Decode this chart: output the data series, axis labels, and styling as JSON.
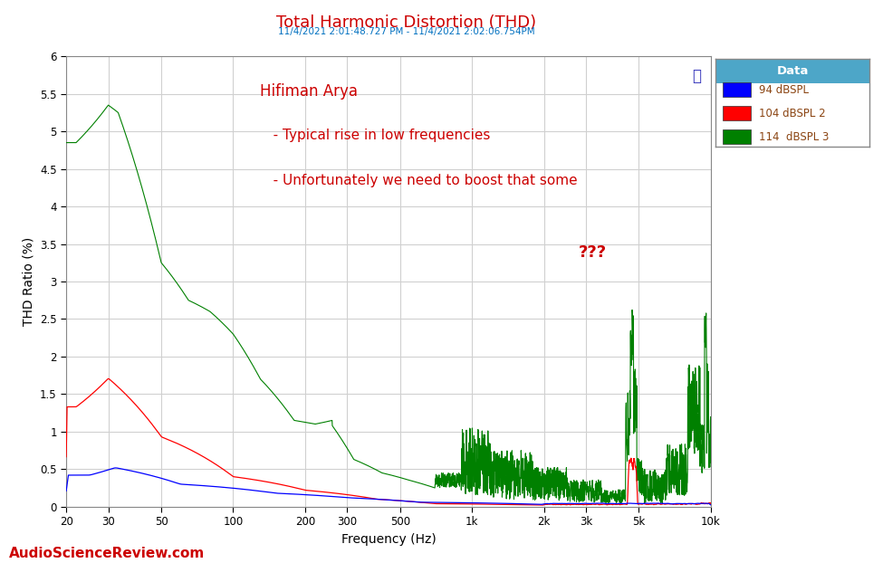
{
  "title": "Total Harmonic Distortion (THD)",
  "subtitle": "11/4/2021 2:01:48.727 PM - 11/4/2021 2:02:06.754PM",
  "xlabel": "Frequency (Hz)",
  "ylabel": "THD Ratio (%)",
  "xlim": [
    20,
    10000
  ],
  "ylim": [
    0,
    6.0
  ],
  "yticks": [
    0,
    0.5,
    1.0,
    1.5,
    2.0,
    2.5,
    3.0,
    3.5,
    4.0,
    4.5,
    5.0,
    5.5,
    6.0
  ],
  "xtick_positions": [
    20,
    30,
    50,
    100,
    200,
    300,
    500,
    1000,
    2000,
    3000,
    5000,
    10000
  ],
  "xtick_labels": [
    "20",
    "30",
    "50",
    "100",
    "200",
    "300",
    "500",
    "1k",
    "2k",
    "3k",
    "5k",
    "10k"
  ],
  "legend_title": "Data",
  "legend_entries": [
    "94 dBSPL",
    "104 dBSPL 2",
    "114  dBSPL 3"
  ],
  "line_colors": [
    "#0000ff",
    "#ff0000",
    "#008000"
  ],
  "bg_color": "#ffffff",
  "plot_bg": "#ffffff",
  "grid_color": "#d0d0d0",
  "title_color": "#cc0000",
  "subtitle_color": "#0070c0",
  "annotation_color": "#cc0000",
  "question_marks": "???",
  "watermark": "AudioScienceReview.com",
  "legend_header_bg": "#4da6c8",
  "legend_header_fg": "#ffffff",
  "legend_text_color": "#8B4513"
}
